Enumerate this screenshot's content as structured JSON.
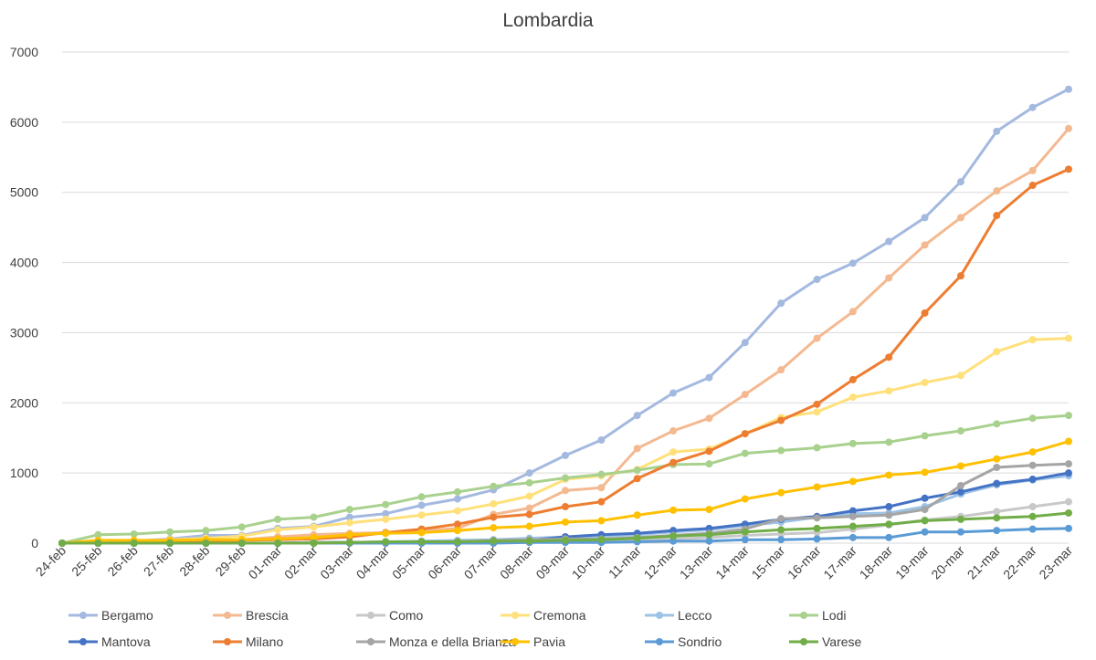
{
  "chart_data": {
    "type": "line",
    "title": "Lombardia",
    "xlabel": "",
    "ylabel": "",
    "ylim": [
      0,
      7000
    ],
    "yticks": [
      "0",
      "1000",
      "2000",
      "3000",
      "4000",
      "5000",
      "6000",
      "7000"
    ],
    "grid": true,
    "legend_position": "bottom",
    "categories": [
      "24-feb",
      "25-feb",
      "26-feb",
      "27-feb",
      "28-feb",
      "29-feb",
      "01-mar",
      "02-mar",
      "03-mar",
      "04-mar",
      "05-mar",
      "06-mar",
      "07-mar",
      "08-mar",
      "09-mar",
      "10-mar",
      "11-mar",
      "12-mar",
      "13-mar",
      "14-mar",
      "15-mar",
      "16-mar",
      "17-mar",
      "18-mar",
      "19-mar",
      "20-mar",
      "21-mar",
      "22-mar",
      "23-mar"
    ],
    "series": [
      {
        "name": "Bergamo",
        "color": "#a4b9e0",
        "values": [
          0,
          20,
          30,
          60,
          110,
          110,
          210,
          240,
          370,
          420,
          540,
          630,
          760,
          1000,
          1250,
          1470,
          1820,
          2140,
          2360,
          2860,
          3420,
          3760,
          3990,
          4300,
          4640,
          5150,
          5870,
          6210,
          6470
        ]
      },
      {
        "name": "Brescia",
        "color": "#f4b991",
        "values": [
          0,
          10,
          10,
          20,
          40,
          50,
          90,
          120,
          140,
          150,
          180,
          210,
          410,
          500,
          750,
          790,
          1350,
          1600,
          1780,
          2120,
          2470,
          2920,
          3300,
          3780,
          4250,
          4640,
          5020,
          5310,
          5910
        ]
      },
      {
        "name": "Como",
        "color": "#c8c8c8",
        "values": [
          0,
          0,
          0,
          0,
          0,
          0,
          0,
          0,
          10,
          10,
          10,
          10,
          20,
          20,
          30,
          40,
          50,
          60,
          80,
          110,
          130,
          150,
          200,
          260,
          330,
          380,
          450,
          520,
          590
        ]
      },
      {
        "name": "Cremona",
        "color": "#ffe07a",
        "values": [
          0,
          20,
          30,
          50,
          70,
          100,
          190,
          230,
          290,
          340,
          400,
          460,
          560,
          670,
          910,
          960,
          1050,
          1300,
          1340,
          1560,
          1790,
          1870,
          2080,
          2170,
          2290,
          2390,
          2730,
          2900,
          2920
        ]
      },
      {
        "name": "Lecco",
        "color": "#9dc3e6",
        "values": [
          0,
          0,
          0,
          0,
          0,
          0,
          0,
          10,
          10,
          20,
          30,
          40,
          50,
          70,
          90,
          100,
          120,
          160,
          190,
          250,
          300,
          370,
          420,
          430,
          520,
          700,
          830,
          900,
          960
        ]
      },
      {
        "name": "Lodi",
        "color": "#a9d18e",
        "values": [
          0,
          120,
          130,
          160,
          180,
          230,
          340,
          370,
          480,
          550,
          660,
          730,
          810,
          860,
          930,
          980,
          1040,
          1120,
          1130,
          1280,
          1320,
          1360,
          1420,
          1440,
          1530,
          1600,
          1700,
          1780,
          1820
        ]
      },
      {
        "name": "Mantova",
        "color": "#4472c4",
        "values": [
          0,
          0,
          0,
          0,
          0,
          0,
          0,
          10,
          10,
          10,
          20,
          20,
          30,
          40,
          90,
          120,
          140,
          180,
          210,
          270,
          340,
          380,
          460,
          520,
          640,
          730,
          850,
          910,
          1000
        ]
      },
      {
        "name": "Milano",
        "color": "#ed7d31",
        "values": [
          0,
          0,
          10,
          20,
          30,
          40,
          50,
          60,
          90,
          150,
          200,
          270,
          370,
          410,
          520,
          590,
          920,
          1150,
          1310,
          1560,
          1750,
          1980,
          2330,
          2650,
          3280,
          3810,
          4670,
          5100,
          5330
        ]
      },
      {
        "name": "Monza e della Brianza",
        "color": "#a5a5a5",
        "values": [
          0,
          0,
          0,
          0,
          0,
          0,
          0,
          10,
          10,
          10,
          20,
          20,
          40,
          50,
          60,
          60,
          80,
          110,
          140,
          200,
          350,
          360,
          380,
          400,
          480,
          820,
          1080,
          1110,
          1130
        ]
      },
      {
        "name": "Pavia",
        "color": "#ffc000",
        "values": [
          0,
          40,
          40,
          40,
          50,
          50,
          60,
          80,
          120,
          140,
          150,
          180,
          220,
          240,
          300,
          320,
          400,
          470,
          480,
          630,
          720,
          800,
          880,
          970,
          1010,
          1100,
          1200,
          1300,
          1450
        ]
      },
      {
        "name": "Sondrio",
        "color": "#5b9bd5",
        "values": [
          0,
          0,
          0,
          0,
          0,
          0,
          0,
          0,
          0,
          0,
          0,
          0,
          0,
          10,
          10,
          10,
          20,
          30,
          30,
          50,
          50,
          60,
          80,
          80,
          160,
          160,
          180,
          200,
          210
        ]
      },
      {
        "name": "Varese",
        "color": "#70ad47",
        "values": [
          0,
          0,
          0,
          0,
          0,
          0,
          0,
          0,
          10,
          20,
          20,
          20,
          30,
          30,
          40,
          50,
          70,
          100,
          120,
          160,
          190,
          210,
          240,
          270,
          320,
          340,
          360,
          380,
          430
        ]
      }
    ]
  }
}
